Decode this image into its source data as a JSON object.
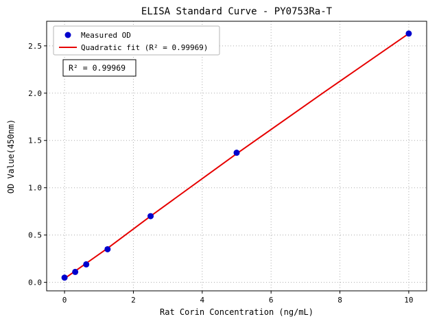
{
  "figure": {
    "background": "#ffffff"
  },
  "chart_data": {
    "type": "scatter",
    "title": "ELISA Standard Curve - PY0753Ra-T",
    "xlabel": "Rat Corin Concentration (ng/mL)",
    "ylabel": "OD Value(450nm)",
    "xlim": [
      -0.52,
      10.52
    ],
    "ylim": [
      -0.09,
      2.76
    ],
    "x_ticks": [
      0,
      2,
      4,
      6,
      8,
      10
    ],
    "y_ticks": [
      0.0,
      0.5,
      1.0,
      1.5,
      2.0,
      2.5
    ],
    "grid": true,
    "grid_style": "dotted",
    "grid_color": "#aaaaaa",
    "legend_position": "upper-left",
    "series": [
      {
        "name": "Measured OD",
        "type": "scatter",
        "color": "#0000cd",
        "x": [
          0,
          0.31,
          0.63,
          1.25,
          2.5,
          5,
          10
        ],
        "y": [
          0.05,
          0.11,
          0.19,
          0.35,
          0.7,
          1.37,
          2.63
        ]
      },
      {
        "name": "Quadratic fit (R² = 0.99969)",
        "type": "line",
        "color": "#e60000",
        "x": [
          0,
          1.25,
          2.5,
          5,
          7.5,
          10
        ],
        "y": [
          0.04,
          0.36,
          0.7,
          1.36,
          2.0,
          2.63
        ]
      }
    ],
    "annotation": {
      "text": "R² = 0.99969"
    },
    "r_squared": 0.99969
  }
}
